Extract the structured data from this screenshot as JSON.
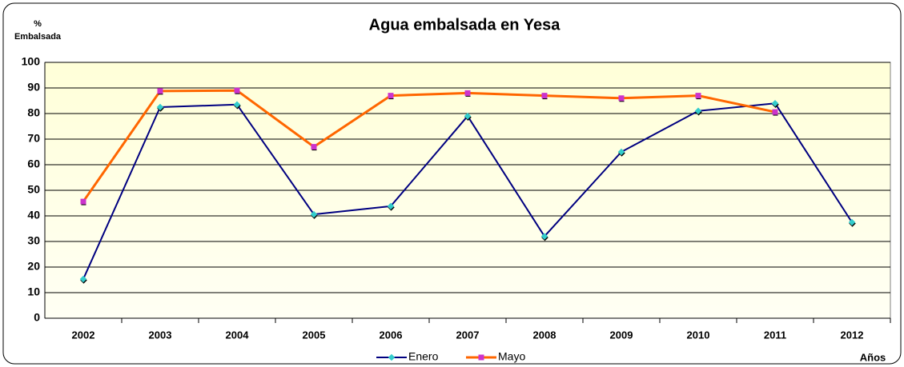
{
  "chart_data": {
    "type": "line",
    "title": "Agua embalsada en Yesa",
    "ylabel": [
      "%",
      "Embalsada"
    ],
    "xlabel": "Años",
    "categories": [
      "2002",
      "2003",
      "2004",
      "2005",
      "2006",
      "2007",
      "2008",
      "2009",
      "2010",
      "2011",
      "2012"
    ],
    "series": [
      {
        "name": "Enero",
        "color": "#000080",
        "marker_color": "#33cccc",
        "values": [
          15.3,
          82.5,
          83.5,
          40.6,
          43.8,
          79,
          32,
          65,
          81,
          84,
          37.5
        ]
      },
      {
        "name": "Mayo",
        "color": "#ff6600",
        "marker_color": "#cc33cc",
        "values": [
          45.6,
          88.8,
          89,
          67,
          87,
          88,
          87,
          86,
          87,
          80.6,
          null
        ]
      }
    ],
    "ylim": [
      0,
      100
    ],
    "yticks": [
      0,
      10,
      20,
      30,
      40,
      50,
      60,
      70,
      80,
      90,
      100
    ],
    "grid": true,
    "legend": "bottom"
  }
}
